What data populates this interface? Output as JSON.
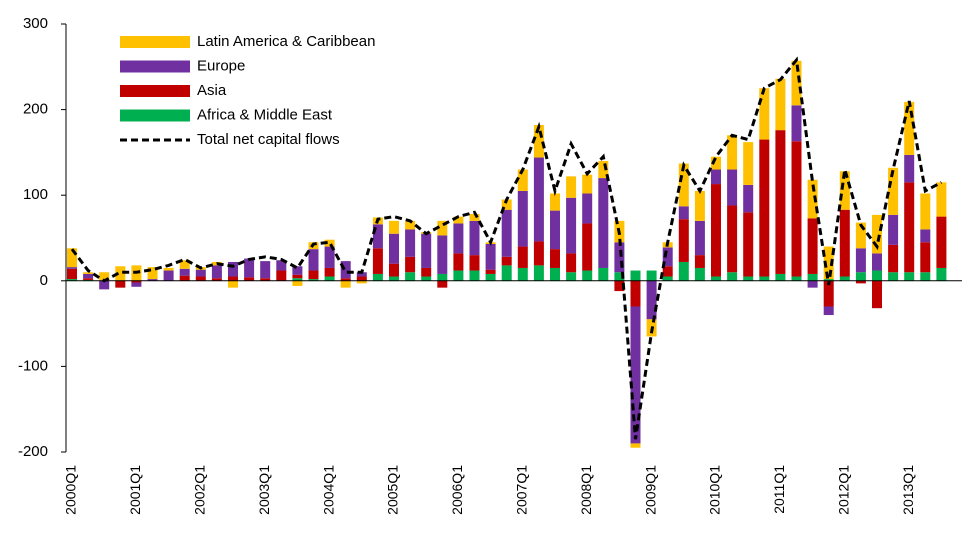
{
  "chart_data": {
    "type": "bar",
    "stacked": true,
    "categories": [
      "2000Q1",
      null,
      null,
      null,
      "2001Q1",
      null,
      null,
      null,
      "2002Q1",
      null,
      null,
      null,
      "2003Q1",
      null,
      null,
      null,
      "2004Q1",
      null,
      null,
      null,
      "2005Q1",
      null,
      null,
      null,
      "2006Q1",
      null,
      null,
      null,
      "2007Q1",
      null,
      null,
      null,
      "2008Q1",
      null,
      null,
      null,
      "2009Q1",
      null,
      null,
      null,
      "2010Q1",
      null,
      null,
      null,
      "2011Q1",
      null,
      null,
      null,
      "2012Q1",
      null,
      null,
      null,
      "2013Q1",
      null,
      null
    ],
    "series": [
      {
        "name": "Africa & Middle East",
        "color": "#00b050",
        "values": [
          2,
          1,
          0,
          0,
          0,
          0,
          0,
          0,
          0,
          0,
          0,
          0,
          0,
          0,
          3,
          2,
          5,
          0,
          0,
          8,
          5,
          10,
          5,
          8,
          12,
          12,
          8,
          18,
          15,
          18,
          15,
          10,
          12,
          15,
          10,
          12,
          12,
          5,
          22,
          15,
          5,
          10,
          5,
          5,
          8,
          5,
          8,
          2,
          5,
          10,
          12,
          10,
          10,
          10,
          15
        ]
      },
      {
        "name": "Asia",
        "color": "#c00000",
        "values": [
          12,
          2,
          0,
          -8,
          -2,
          0,
          0,
          6,
          5,
          3,
          5,
          4,
          3,
          12,
          4,
          10,
          10,
          3,
          5,
          30,
          15,
          18,
          10,
          -8,
          20,
          18,
          5,
          10,
          25,
          28,
          22,
          22,
          55,
          0,
          -12,
          -30,
          0,
          12,
          50,
          15,
          108,
          78,
          75,
          160,
          168,
          158,
          65,
          -30,
          78,
          -3,
          -32,
          32,
          105,
          35,
          60
        ]
      },
      {
        "name": "Europe",
        "color": "#7030a0",
        "values": [
          2,
          5,
          -10,
          0,
          -5,
          2,
          12,
          8,
          8,
          15,
          17,
          22,
          20,
          12,
          10,
          25,
          25,
          20,
          5,
          28,
          35,
          32,
          40,
          45,
          35,
          40,
          30,
          55,
          65,
          98,
          45,
          65,
          35,
          105,
          35,
          -160,
          -45,
          22,
          15,
          40,
          17,
          42,
          32,
          0,
          0,
          42,
          -8,
          -10,
          0,
          28,
          20,
          35,
          32,
          15,
          0
        ]
      },
      {
        "name": "Latin America & Caribbean",
        "color": "#ffc000",
        "values": [
          22,
          2,
          10,
          17,
          18,
          14,
          3,
          10,
          3,
          4,
          -8,
          0,
          0,
          0,
          -6,
          8,
          8,
          -8,
          -3,
          8,
          15,
          10,
          2,
          17,
          8,
          8,
          2,
          12,
          25,
          38,
          20,
          25,
          22,
          20,
          25,
          -5,
          -20,
          6,
          50,
          35,
          15,
          40,
          50,
          60,
          60,
          52,
          45,
          38,
          45,
          30,
          45,
          55,
          62,
          42,
          40
        ]
      },
      {
        "name": "Total net capital flows",
        "type": "line",
        "color": "#000000",
        "values": [
          37,
          12,
          0,
          10,
          10,
          13,
          18,
          25,
          15,
          20,
          17,
          25,
          28,
          25,
          15,
          43,
          45,
          10,
          10,
          72,
          75,
          70,
          55,
          65,
          75,
          80,
          45,
          95,
          130,
          180,
          105,
          160,
          125,
          145,
          55,
          -185,
          -60,
          45,
          135,
          105,
          145,
          170,
          165,
          225,
          235,
          258,
          115,
          -5,
          130,
          65,
          40,
          130,
          210,
          105,
          115
        ]
      }
    ],
    "legend_order": [
      3,
      2,
      1,
      0,
      4
    ],
    "ylim": [
      -200,
      300
    ],
    "yticks": [
      -200,
      -100,
      0,
      100,
      200,
      300
    ]
  }
}
